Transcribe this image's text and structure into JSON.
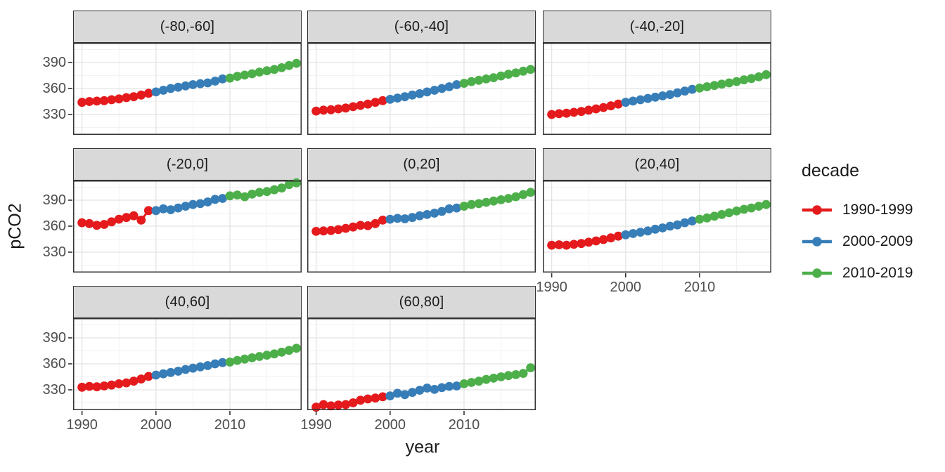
{
  "figure": {
    "background": "#ffffff"
  },
  "axes": {
    "x_title": "year",
    "y_title": "pCO2",
    "x_tick_labels": [
      "1990",
      "2000",
      "2010"
    ],
    "y_tick_labels": [
      "390",
      "360",
      "330"
    ]
  },
  "legend": {
    "title": "decade",
    "items": [
      {
        "label": "1990-1999",
        "color": "#E41A1C"
      },
      {
        "label": "2000-2009",
        "color": "#377EB8"
      },
      {
        "label": "2010-2019",
        "color": "#4DAF4A"
      }
    ]
  },
  "chart_data": {
    "type": "scatter",
    "title": "",
    "xlabel": "year",
    "ylabel": "pCO2",
    "legend_position": "right",
    "grid": true,
    "xlim": [
      1988.8,
      2019.7
    ],
    "ylim": [
      306.5,
      412.7
    ],
    "x_major_ticks": [
      1990,
      2000,
      2010
    ],
    "x_minor_ticks": [
      1995,
      2005,
      2015
    ],
    "y_major_ticks": [
      330,
      360,
      390
    ],
    "y_minor_ticks": [
      315,
      345,
      375,
      405
    ],
    "years": [
      1990,
      1991,
      1992,
      1993,
      1994,
      1995,
      1996,
      1997,
      1998,
      1999,
      2000,
      2001,
      2002,
      2003,
      2004,
      2005,
      2006,
      2007,
      2008,
      2009,
      2010,
      2011,
      2012,
      2013,
      2014,
      2015,
      2016,
      2017,
      2018,
      2019
    ],
    "decades": [
      {
        "name": "1990-1999",
        "start": 1990,
        "end": 1999,
        "color": "#E41A1C"
      },
      {
        "name": "2000-2009",
        "start": 2000,
        "end": 2009,
        "color": "#377EB8"
      },
      {
        "name": "2010-2019",
        "start": 2010,
        "end": 2019,
        "color": "#4DAF4A"
      }
    ],
    "facets": [
      {
        "label": "(-80,-60]",
        "values": [
          344,
          345,
          345.5,
          346,
          347,
          348,
          349.5,
          350.5,
          352.5,
          354.5,
          356,
          358,
          360,
          361.5,
          363,
          364.5,
          365.5,
          366.5,
          368.5,
          371,
          372,
          374,
          375.5,
          377,
          379,
          380.5,
          382,
          384,
          386.5,
          389
        ]
      },
      {
        "label": "(-60,-40]",
        "values": [
          334,
          335,
          335.5,
          336.5,
          337.5,
          339,
          340.5,
          342,
          344,
          346,
          347.5,
          349,
          350.5,
          352.5,
          354,
          356,
          358,
          360,
          362,
          364.5,
          366,
          368,
          369.5,
          371,
          372.5,
          374.5,
          376.5,
          378,
          380,
          382
        ]
      },
      {
        "label": "(-40,-20]",
        "values": [
          330,
          331,
          331.5,
          332.5,
          333.5,
          335,
          336.5,
          338,
          340,
          342,
          344,
          345.5,
          347,
          348.5,
          350,
          351.5,
          353,
          355,
          357,
          359,
          360.5,
          362,
          363.5,
          365,
          366.5,
          368,
          370,
          371.5,
          373.5,
          376
        ]
      },
      {
        "label": "(-20,0]",
        "values": [
          364,
          363,
          361,
          362,
          365,
          368,
          370,
          372,
          367,
          378,
          378,
          380,
          379,
          381,
          383,
          385,
          386,
          388,
          391,
          392,
          395,
          396,
          394,
          397,
          399,
          400,
          402,
          404,
          408,
          410
        ]
      },
      {
        "label": "(0,20]",
        "values": [
          354,
          354.5,
          355,
          356,
          357.5,
          359,
          361,
          360.5,
          363,
          367,
          368,
          369,
          368.5,
          370,
          372,
          373.5,
          375,
          377,
          380,
          381,
          383,
          385,
          386,
          387.5,
          389,
          390.5,
          392,
          394,
          396.5,
          399
        ]
      },
      {
        "label": "(20,40]",
        "values": [
          338,
          338.5,
          338,
          339,
          340,
          341.5,
          343,
          344.5,
          346.5,
          348.5,
          350,
          351.5,
          353,
          354.5,
          356.5,
          358,
          360,
          361.5,
          364,
          366,
          368,
          369.5,
          371.5,
          373.5,
          375.5,
          377.5,
          379.5,
          381,
          383,
          385
        ]
      },
      {
        "label": "(40,60]",
        "values": [
          333,
          334,
          333.5,
          334.5,
          335.5,
          337,
          338,
          340,
          342.5,
          345.5,
          347,
          348.5,
          350,
          351.5,
          353.5,
          355,
          356.5,
          358,
          360,
          361.5,
          362,
          364,
          365.5,
          367,
          368.5,
          370,
          371.5,
          373.5,
          375.5,
          378
        ]
      },
      {
        "label": "(60,80]",
        "values": [
          310,
          313,
          311.5,
          312.5,
          313,
          315,
          318,
          319.5,
          320.5,
          322,
          323,
          326,
          324.5,
          327,
          329.5,
          332,
          330.5,
          332.5,
          334,
          334.5,
          337,
          338.5,
          340,
          342,
          343.5,
          345,
          346.5,
          347.5,
          349,
          355.5
        ]
      }
    ]
  }
}
